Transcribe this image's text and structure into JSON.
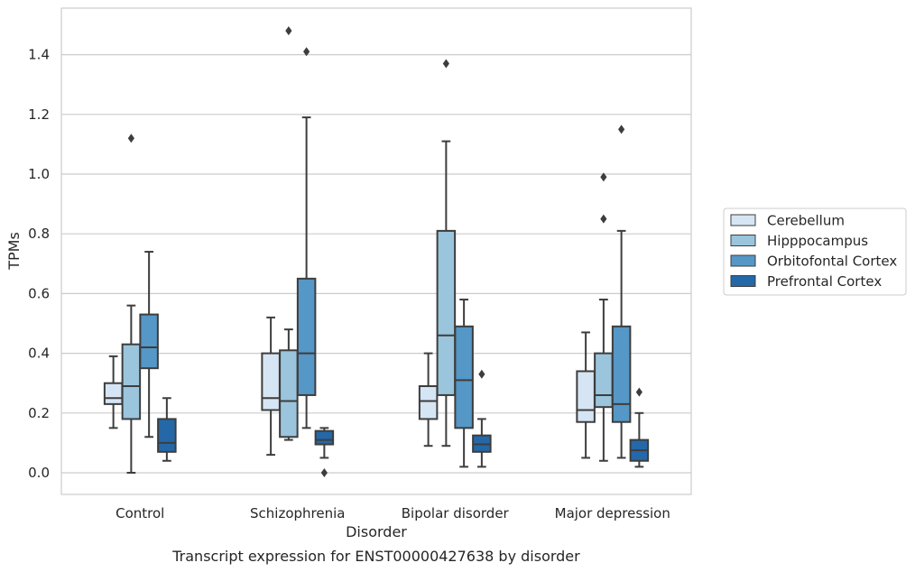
{
  "chart_data": {
    "type": "boxplot",
    "title": "",
    "caption": "Transcript expression for ENST00000427638 by disorder",
    "xlabel": "Disorder",
    "ylabel": "TPMs",
    "ylim": [
      -0.07,
      1.56
    ],
    "yticks": [
      0.0,
      0.2,
      0.4,
      0.6,
      0.8,
      1.0,
      1.2,
      1.4
    ],
    "ytick_labels": [
      "0.0",
      "0.2",
      "0.4",
      "0.6",
      "0.8",
      "1.0",
      "1.2",
      "1.4"
    ],
    "categories": [
      "Control",
      "Schizophrenia",
      "Bipolar disorder",
      "Major depression"
    ],
    "grid": "horizontal",
    "legend_position": "right",
    "series": [
      {
        "name": "Cerebellum",
        "color": "#d6e5f4",
        "boxes": [
          {
            "whislo": 0.15,
            "q1": 0.23,
            "med": 0.25,
            "q3": 0.3,
            "whishi": 0.39,
            "fliers": []
          },
          {
            "whislo": 0.06,
            "q1": 0.21,
            "med": 0.25,
            "q3": 0.4,
            "whishi": 0.52,
            "fliers": []
          },
          {
            "whislo": 0.09,
            "q1": 0.18,
            "med": 0.24,
            "q3": 0.29,
            "whishi": 0.4,
            "fliers": []
          },
          {
            "whislo": 0.05,
            "q1": 0.17,
            "med": 0.21,
            "q3": 0.34,
            "whishi": 0.47,
            "fliers": []
          }
        ]
      },
      {
        "name": "Hipppocampus",
        "color": "#9ac5dc",
        "boxes": [
          {
            "whislo": 0.0,
            "q1": 0.18,
            "med": 0.29,
            "q3": 0.43,
            "whishi": 0.56,
            "fliers": [
              1.12
            ]
          },
          {
            "whislo": 0.11,
            "q1": 0.12,
            "med": 0.24,
            "q3": 0.41,
            "whishi": 0.48,
            "fliers": [
              1.48
            ]
          },
          {
            "whislo": 0.09,
            "q1": 0.26,
            "med": 0.46,
            "q3": 0.81,
            "whishi": 1.11,
            "fliers": [
              1.37
            ]
          },
          {
            "whislo": 0.04,
            "q1": 0.22,
            "med": 0.26,
            "q3": 0.4,
            "whishi": 0.58,
            "fliers": [
              0.85,
              0.99
            ]
          }
        ]
      },
      {
        "name": "Orbitofontal Cortex",
        "color": "#5597c6",
        "boxes": [
          {
            "whislo": 0.12,
            "q1": 0.35,
            "med": 0.42,
            "q3": 0.53,
            "whishi": 0.74,
            "fliers": []
          },
          {
            "whislo": 0.15,
            "q1": 0.26,
            "med": 0.4,
            "q3": 0.65,
            "whishi": 1.19,
            "fliers": [
              1.41
            ]
          },
          {
            "whislo": 0.02,
            "q1": 0.15,
            "med": 0.31,
            "q3": 0.49,
            "whishi": 0.58,
            "fliers": []
          },
          {
            "whislo": 0.05,
            "q1": 0.17,
            "med": 0.23,
            "q3": 0.49,
            "whishi": 0.81,
            "fliers": [
              1.15
            ]
          }
        ]
      },
      {
        "name": "Prefrontal Cortex",
        "color": "#2568a8",
        "boxes": [
          {
            "whislo": 0.04,
            "q1": 0.07,
            "med": 0.1,
            "q3": 0.18,
            "whishi": 0.25,
            "fliers": []
          },
          {
            "whislo": 0.05,
            "q1": 0.095,
            "med": 0.11,
            "q3": 0.14,
            "whishi": 0.15,
            "fliers": [
              0.0
            ]
          },
          {
            "whislo": 0.02,
            "q1": 0.07,
            "med": 0.095,
            "q3": 0.125,
            "whishi": 0.18,
            "fliers": [
              0.33
            ]
          },
          {
            "whislo": 0.02,
            "q1": 0.04,
            "med": 0.075,
            "q3": 0.11,
            "whishi": 0.2,
            "fliers": [
              0.27
            ]
          }
        ]
      }
    ]
  }
}
